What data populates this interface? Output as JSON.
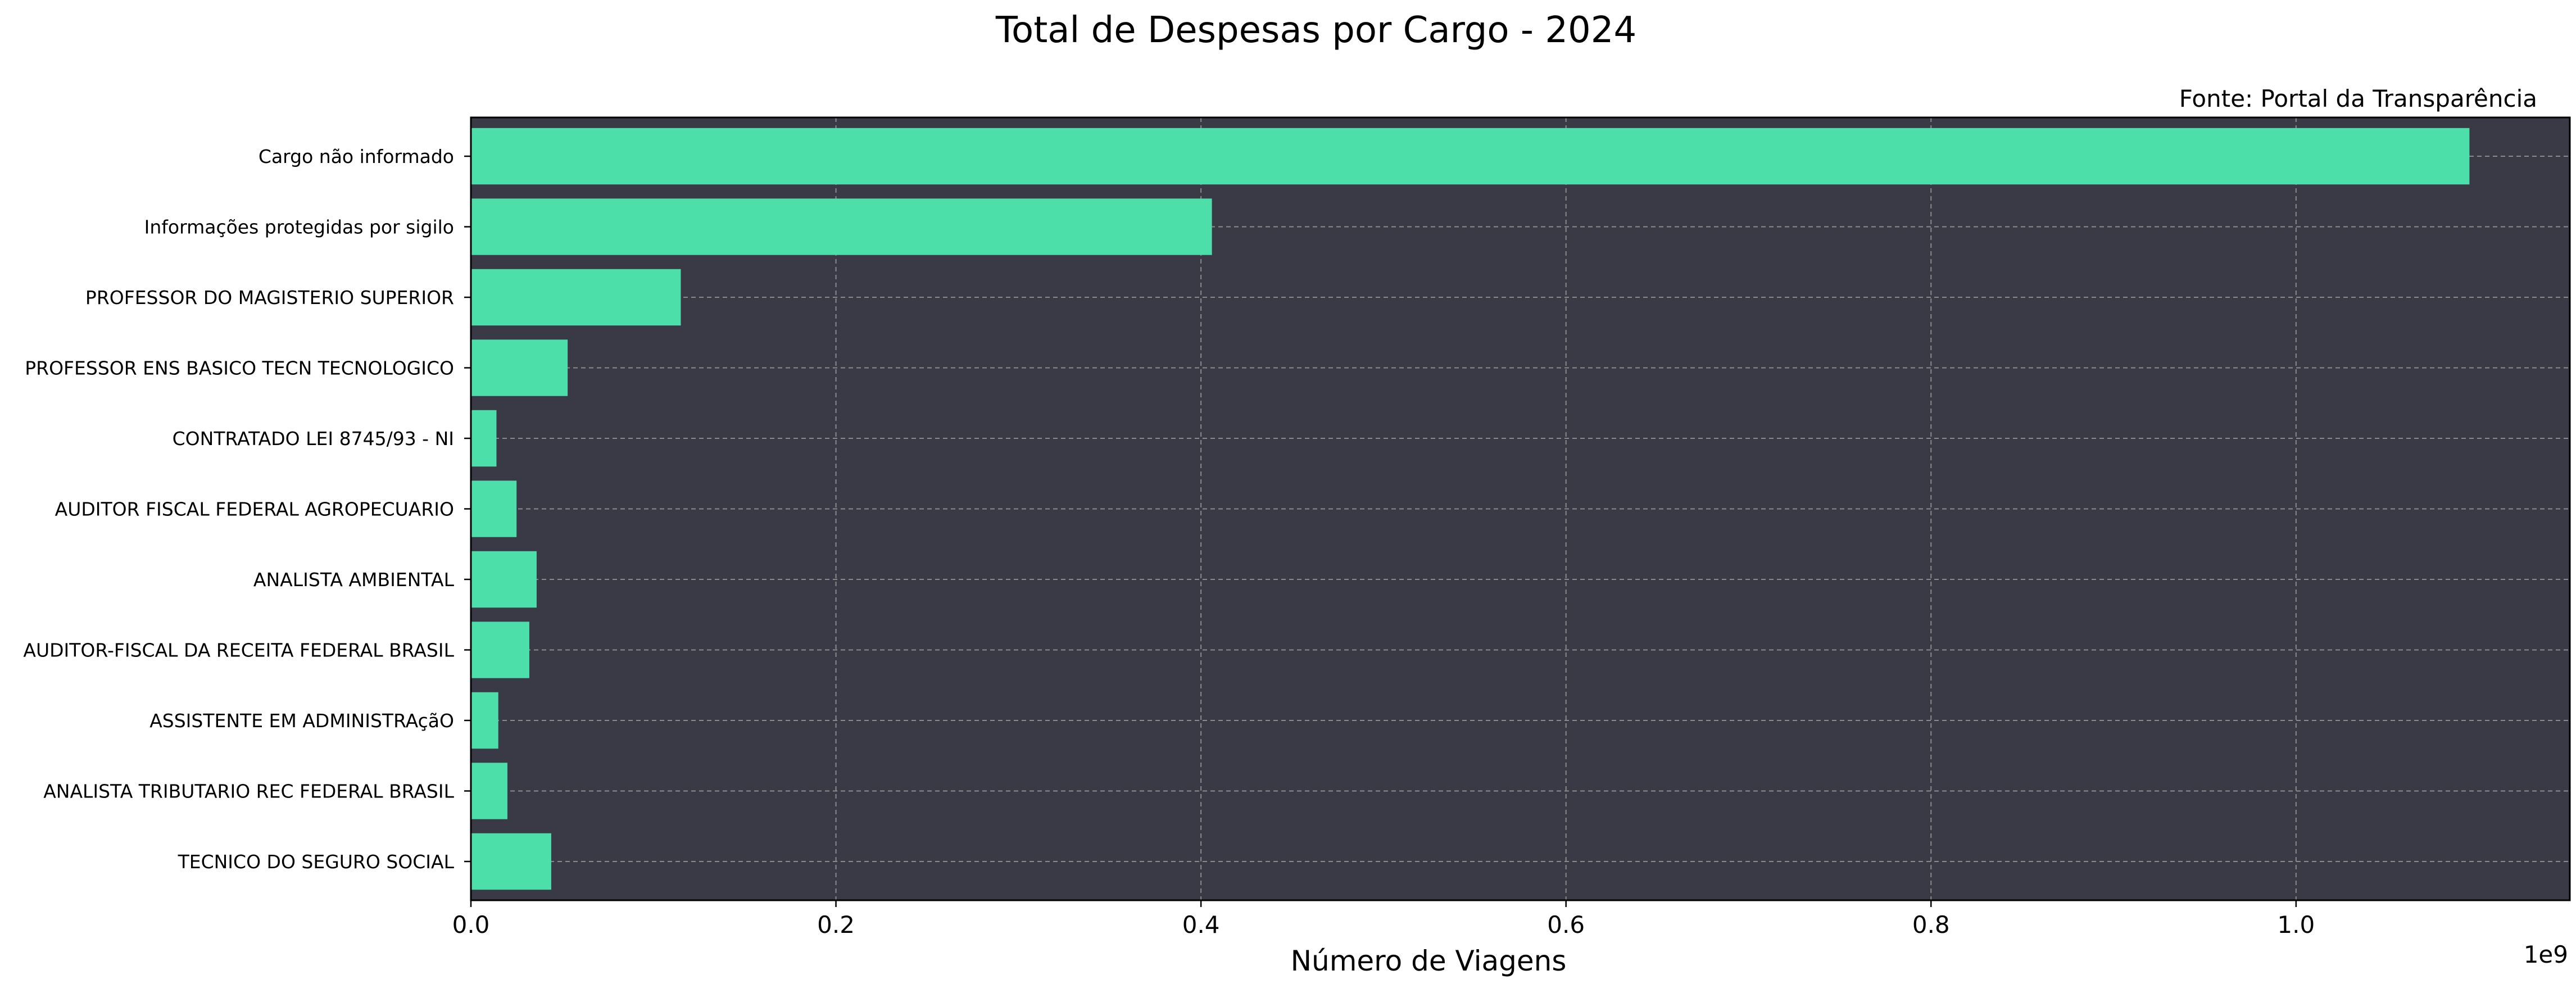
{
  "chart_data": {
    "type": "bar",
    "orientation": "horizontal",
    "title": "Total de Despesas por Cargo - 2024",
    "source_note": "Fonte: Portal da Transparência",
    "xlabel": "Número de Viagens",
    "ylabel": "",
    "x_offset_label": "1e9",
    "x_ticks": [
      0.0,
      0.2,
      0.4,
      0.6,
      0.8,
      1.0
    ],
    "x_tick_labels": [
      "0.0",
      "0.2",
      "0.4",
      "0.6",
      "0.8",
      "1.0"
    ],
    "xlim": [
      0,
      1.15
    ],
    "value_scale": 1000000000,
    "grid": true,
    "categories": [
      "Cargo não informado",
      "Informações protegidas por sigilo",
      "PROFESSOR DO MAGISTERIO SUPERIOR",
      "PROFESSOR ENS BASICO TECN TECNOLOGICO",
      "CONTRATADO LEI 8745/93 - NI",
      "AUDITOR FISCAL FEDERAL AGROPECUARIO",
      "ANALISTA AMBIENTAL",
      "AUDITOR-FISCAL DA RECEITA FEDERAL BRASIL",
      "ASSISTENTE EM ADMINISTRAçãO",
      "ANALISTA TRIBUTARIO REC FEDERAL BRASIL",
      "TECNICO DO SEGURO SOCIAL"
    ],
    "values": [
      1.095,
      0.406,
      0.115,
      0.053,
      0.014,
      0.025,
      0.036,
      0.032,
      0.015,
      0.02,
      0.044
    ],
    "colors": {
      "bar": "#4ddfaa",
      "plot_background": "#3a3a47",
      "grid": "#8a8a8a",
      "axis": "#000000",
      "text": "#000000"
    }
  }
}
